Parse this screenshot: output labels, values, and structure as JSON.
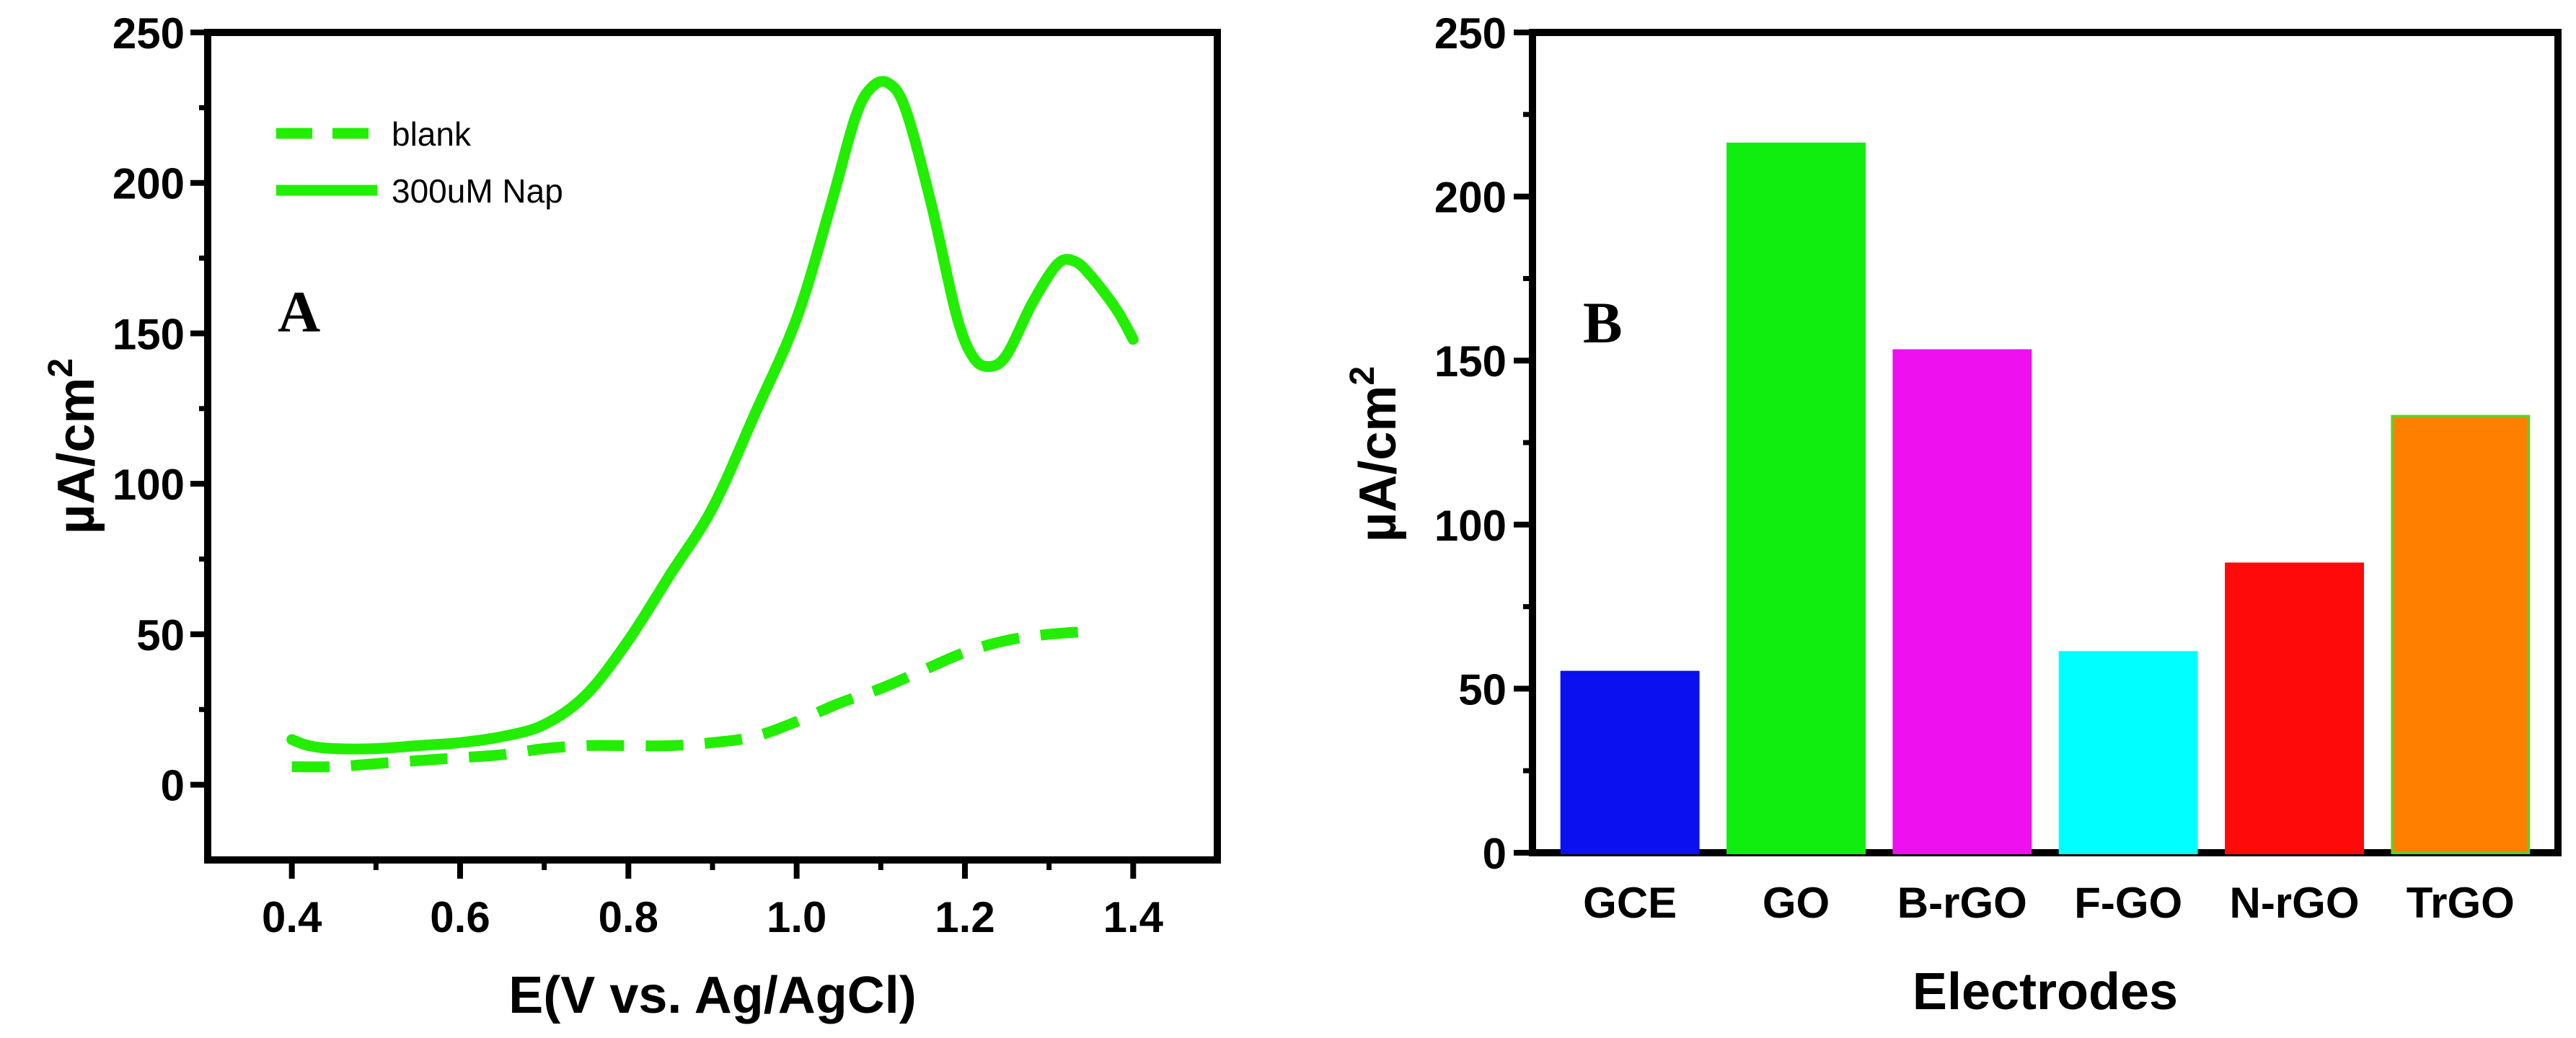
{
  "chart_data": [
    {
      "panel": "A",
      "type": "line",
      "title": "",
      "panel_label": "A",
      "xlabel": "E(V vs. Ag/AgCl)",
      "ylabel": "µA/cm",
      "ylabel_sup": "2",
      "xlim": [
        0.3,
        1.5
      ],
      "ylim": [
        -25,
        250
      ],
      "xticks": [
        0.4,
        0.6,
        0.8,
        1.0,
        1.2,
        1.4
      ],
      "xtick_labels": [
        "0.4",
        "0.6",
        "0.8",
        "1.0",
        "1.2",
        "1.4"
      ],
      "yticks": [
        0,
        50,
        100,
        150,
        200,
        250
      ],
      "ytick_labels": [
        "0",
        "50",
        "100",
        "150",
        "200",
        "250"
      ],
      "grid": false,
      "legend_position": "top-left",
      "series": [
        {
          "name": "blank",
          "style": "dashed",
          "color": "#22ee00",
          "x": [
            0.4,
            0.45,
            0.5,
            0.55,
            0.6,
            0.65,
            0.7,
            0.75,
            0.8,
            0.85,
            0.9,
            0.95,
            1.0,
            1.05,
            1.1,
            1.15,
            1.2,
            1.25,
            1.3,
            1.35
          ],
          "y": [
            6,
            6,
            7,
            8,
            9,
            10,
            12,
            13,
            13,
            13,
            14,
            16,
            21,
            27,
            32,
            38,
            44,
            48,
            50,
            51
          ]
        },
        {
          "name": "300uM Nap",
          "style": "solid",
          "color": "#22ee00",
          "x": [
            0.4,
            0.42,
            0.45,
            0.5,
            0.55,
            0.6,
            0.65,
            0.7,
            0.75,
            0.8,
            0.85,
            0.9,
            0.95,
            1.0,
            1.04,
            1.07,
            1.09,
            1.11,
            1.13,
            1.16,
            1.19,
            1.21,
            1.23,
            1.25,
            1.28,
            1.31,
            1.33,
            1.35,
            1.38,
            1.4
          ],
          "y": [
            15,
            13,
            12,
            12,
            13,
            14,
            16,
            20,
            30,
            48,
            70,
            92,
            123,
            155,
            192,
            222,
            232,
            233,
            224,
            193,
            156,
            142,
            139,
            143,
            160,
            173,
            174,
            169,
            158,
            148
          ]
        }
      ]
    },
    {
      "panel": "B",
      "type": "bar",
      "title": "",
      "panel_label": "B",
      "xlabel": "Electrodes",
      "ylabel": "µA/cm",
      "ylabel_sup": "2",
      "ylim": [
        0,
        250
      ],
      "yticks": [
        0,
        50,
        100,
        150,
        200,
        250
      ],
      "ytick_labels": [
        "0",
        "50",
        "100",
        "150",
        "200",
        "250"
      ],
      "grid": false,
      "categories": [
        "GCE",
        "GO",
        "B-rGO",
        "F-GO",
        "N-rGO",
        "TrGO"
      ],
      "values": [
        55,
        216,
        153,
        61,
        88,
        133
      ],
      "colors": [
        "#0a10f0",
        "#10ee10",
        "#ee10ee",
        "#00ffff",
        "#ff0a0a",
        "#ff8000"
      ],
      "edge_colors": [
        "#0a10f0",
        "#10ee10",
        "#ee10ee",
        "#00ffff",
        "#ff0a0a",
        "#66cc22"
      ]
    }
  ]
}
